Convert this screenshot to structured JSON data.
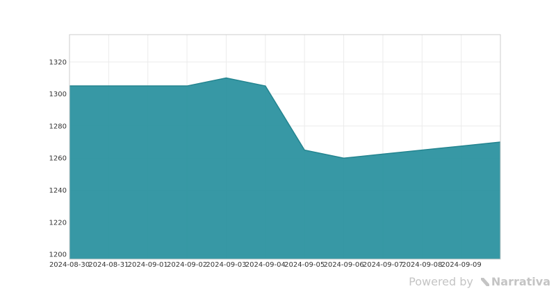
{
  "chart_data": {
    "type": "area",
    "x": [
      "2024-08-30",
      "2024-08-31",
      "2024-09-01",
      "2024-09-02",
      "2024-09-03",
      "2024-09-04",
      "2024-09-05",
      "2024-09-06",
      "2024-09-07",
      "2024-09-08",
      "2024-09-09",
      "2024-09-10"
    ],
    "values": [
      1305,
      1305,
      1305,
      1305,
      1310,
      1305,
      1265,
      1260,
      1262.5,
      1265,
      1267.5,
      1270
    ],
    "x_tick_labels": [
      "2024-08-30",
      "2024-08-31",
      "2024-09-01",
      "2024-09-02",
      "2024-09-03",
      "2024-09-04",
      "2024-09-05",
      "2024-09-06",
      "2024-09-07",
      "2024-09-08",
      "2024-09-09"
    ],
    "y_ticks": [
      1200,
      1220,
      1240,
      1260,
      1280,
      1300,
      1320
    ],
    "ylim": [
      1197,
      1337
    ],
    "title": "",
    "xlabel": "",
    "ylabel": "",
    "grid": true,
    "fill_color": "#2a929f",
    "line_color": "#23848f"
  },
  "footer": {
    "powered_by": "Powered by",
    "brand": "Narrativa",
    "brand_icon": "narrativa-logo-icon"
  }
}
